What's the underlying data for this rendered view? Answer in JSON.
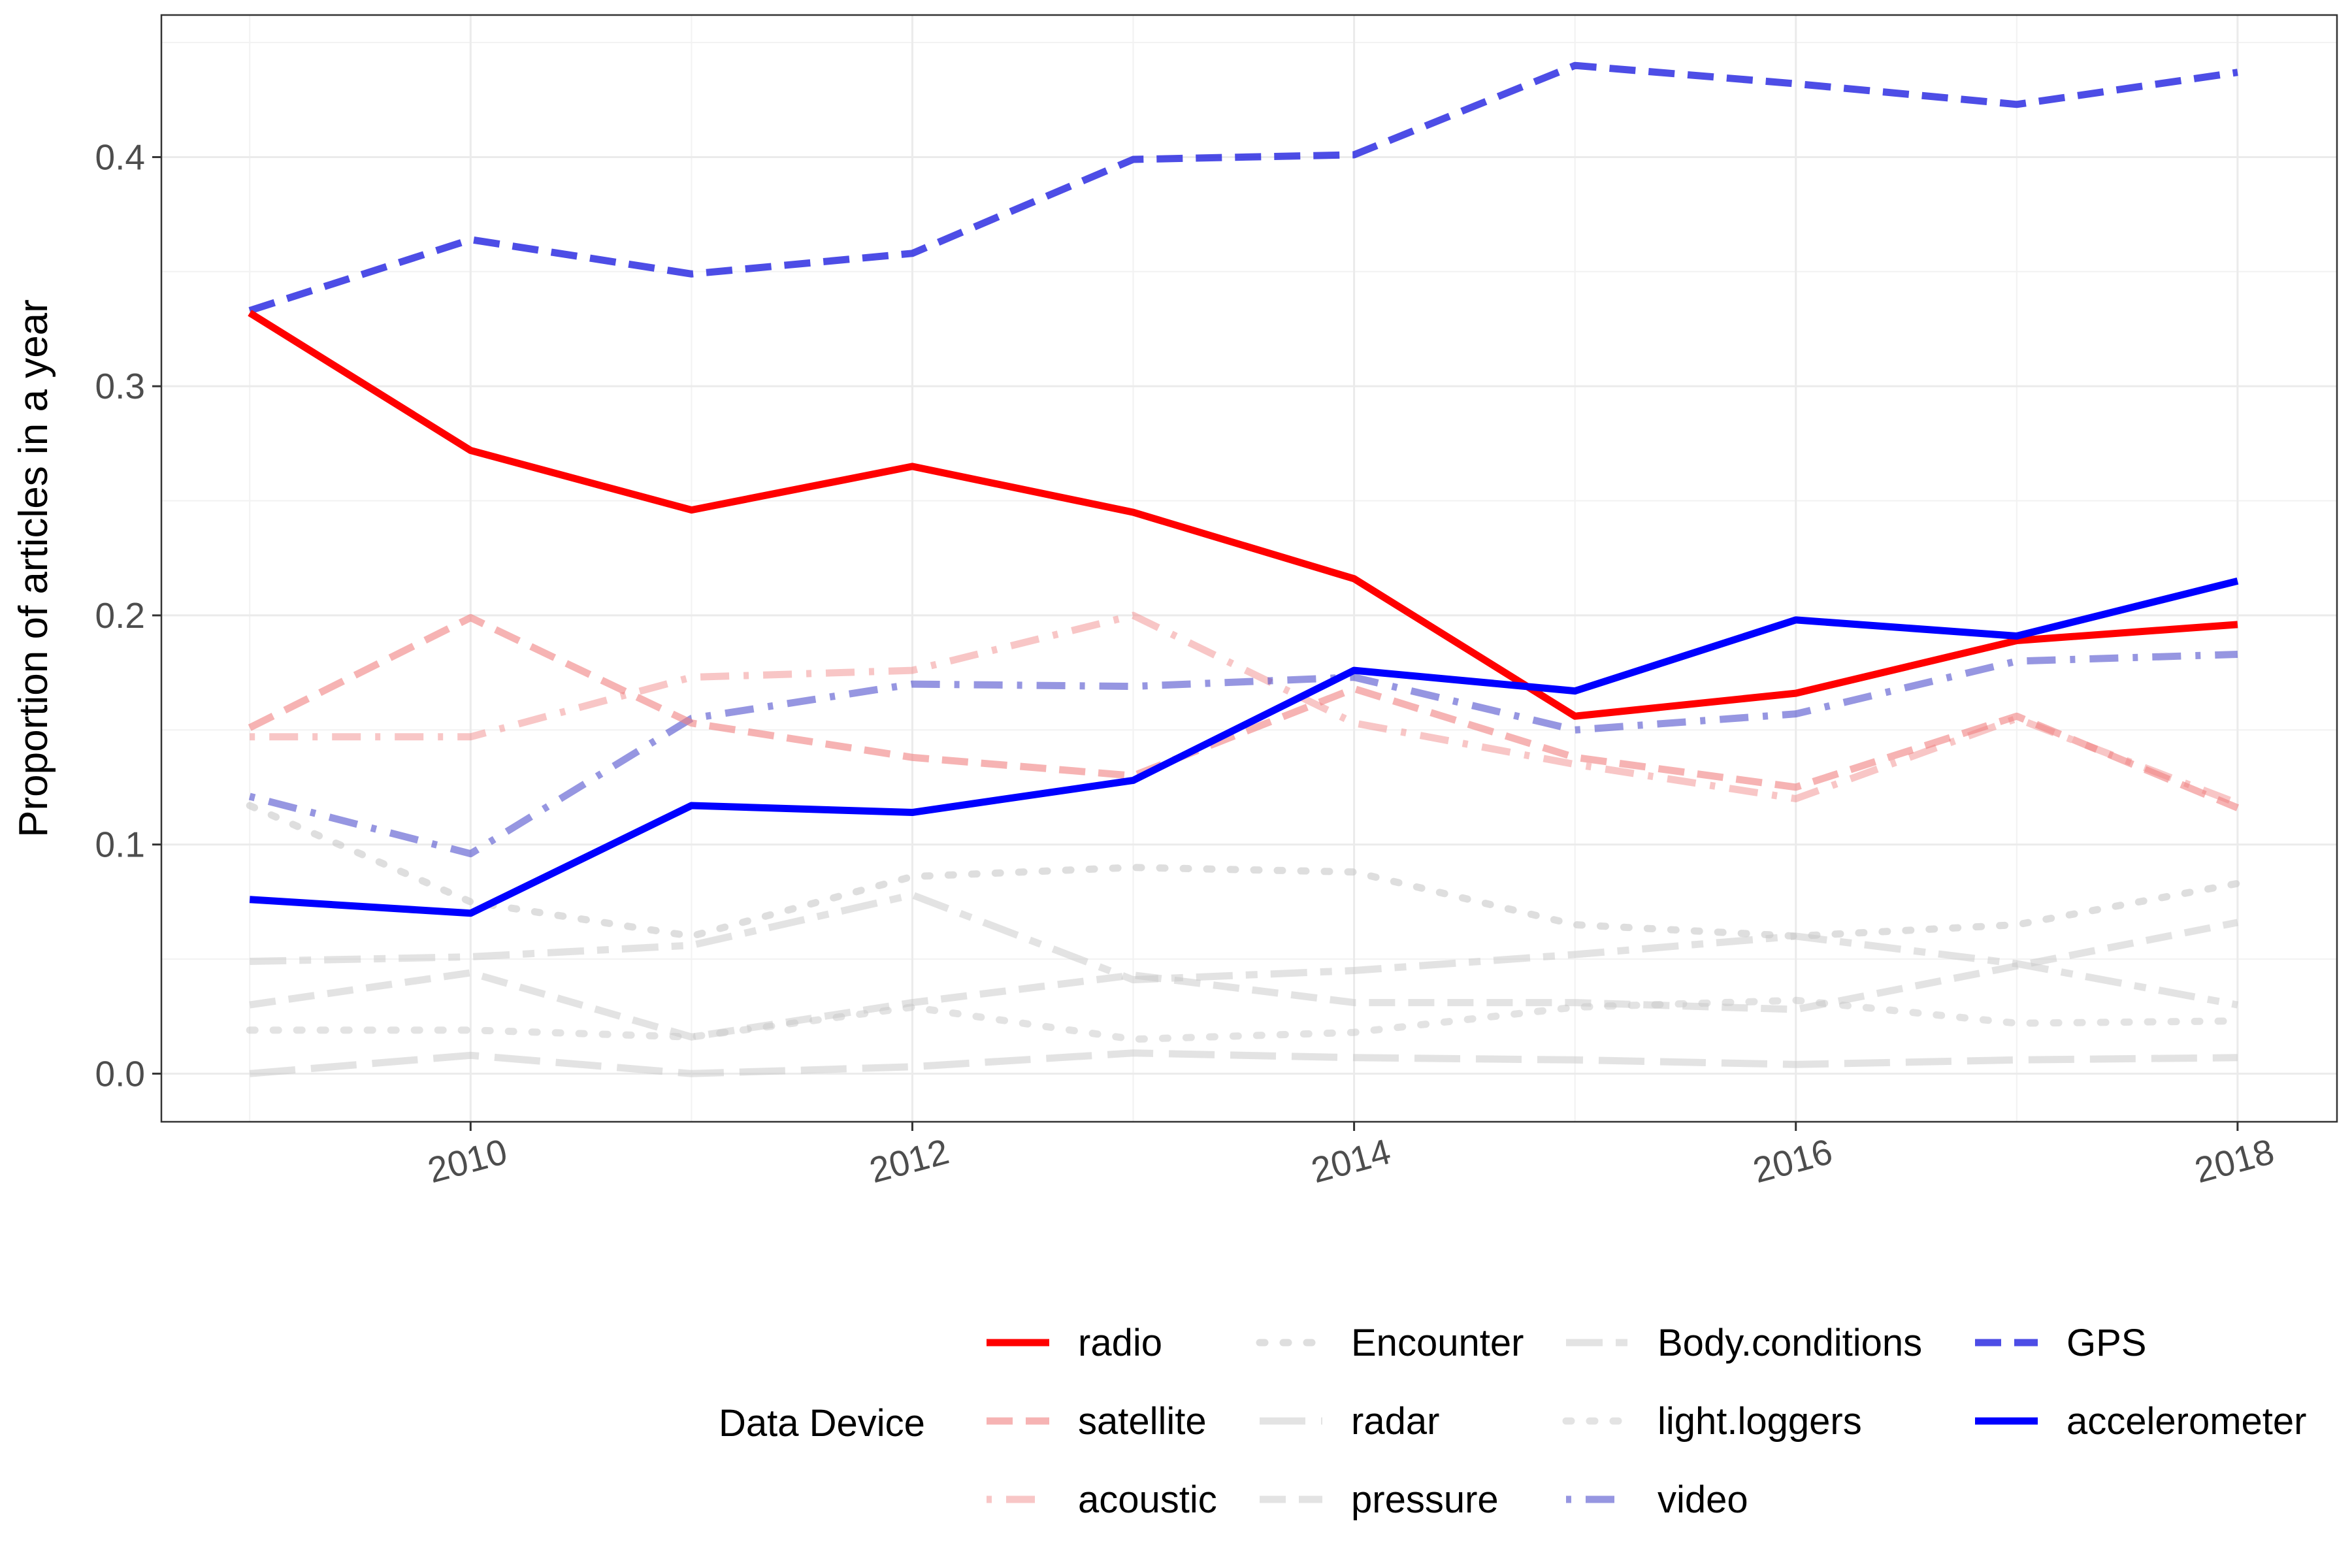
{
  "chart_data": {
    "type": "line",
    "x": [
      2009,
      2010,
      2011,
      2012,
      2013,
      2014,
      2015,
      2016,
      2017,
      2018
    ],
    "xlim": [
      2008.6,
      2018.45
    ],
    "ylim": [
      -0.021,
      0.462
    ],
    "x_ticks": [
      2010,
      2012,
      2014,
      2016,
      2018
    ],
    "x_tick_labels": [
      "2010",
      "2012",
      "2014",
      "2016",
      "2018"
    ],
    "y_ticks": [
      0.0,
      0.1,
      0.2,
      0.3,
      0.4
    ],
    "y_tick_labels": [
      "0.0",
      "0.1",
      "0.2",
      "0.3",
      "0.4"
    ],
    "ylabel": "Proportion of articles in a year",
    "xlabel": "",
    "grid": true,
    "legend_title": "Data Device",
    "legend_position": "bottom",
    "series": [
      {
        "name": "radio",
        "color": "#ff0000",
        "opacity": 1.0,
        "dash": "solid",
        "values": [
          0.332,
          0.272,
          0.246,
          0.265,
          0.245,
          0.216,
          0.156,
          0.166,
          0.189,
          0.196
        ]
      },
      {
        "name": "satellite",
        "color": "#f08080",
        "opacity": 0.6,
        "dash": "dashed",
        "values": [
          0.151,
          0.199,
          0.153,
          0.138,
          0.13,
          0.168,
          0.138,
          0.125,
          0.156,
          0.116
        ]
      },
      {
        "name": "acoustic",
        "color": "#f08080",
        "opacity": 0.45,
        "dash": "dotdash",
        "values": [
          0.147,
          0.147,
          0.173,
          0.176,
          0.2,
          0.153,
          0.135,
          0.12,
          0.155,
          0.118
        ]
      },
      {
        "name": "Encounter",
        "color": "#c8c8c8",
        "opacity": 0.6,
        "dash": "dotted",
        "values": [
          0.117,
          0.075,
          0.06,
          0.086,
          0.09,
          0.088,
          0.065,
          0.06,
          0.065,
          0.083
        ]
      },
      {
        "name": "radar",
        "color": "#c8c8c8",
        "opacity": 0.5,
        "dash": "longdash",
        "values": [
          0.0,
          0.008,
          0.0,
          0.003,
          0.009,
          0.007,
          0.006,
          0.004,
          0.006,
          0.007
        ]
      },
      {
        "name": "pressure",
        "color": "#c8c8c8",
        "opacity": 0.5,
        "dash": "dashed",
        "values": [
          0.03,
          0.044,
          0.016,
          0.031,
          0.043,
          0.031,
          0.031,
          0.028,
          0.047,
          0.066
        ]
      },
      {
        "name": "Body.conditions",
        "color": "#c8c8c8",
        "opacity": 0.5,
        "dash": "twodash",
        "values": [
          0.049,
          0.051,
          0.056,
          0.078,
          0.041,
          0.045,
          0.052,
          0.06,
          0.048,
          0.03
        ]
      },
      {
        "name": "light.loggers",
        "color": "#c8c8c8",
        "opacity": 0.5,
        "dash": "dotted",
        "values": [
          0.019,
          0.019,
          0.016,
          0.029,
          0.015,
          0.018,
          0.029,
          0.032,
          0.022,
          0.023
        ]
      },
      {
        "name": "video",
        "color": "#4040c8",
        "opacity": 0.55,
        "dash": "dotdash",
        "values": [
          0.121,
          0.096,
          0.155,
          0.17,
          0.169,
          0.173,
          0.15,
          0.157,
          0.18,
          0.183
        ]
      },
      {
        "name": "GPS",
        "color": "#2020e0",
        "opacity": 0.8,
        "dash": "dashed",
        "values": [
          0.333,
          0.364,
          0.349,
          0.358,
          0.399,
          0.401,
          0.44,
          0.432,
          0.423,
          0.437
        ]
      },
      {
        "name": "accelerometer",
        "color": "#0000ff",
        "opacity": 1.0,
        "dash": "solid",
        "values": [
          0.076,
          0.07,
          0.117,
          0.114,
          0.128,
          0.176,
          0.167,
          0.198,
          0.191,
          0.215
        ]
      }
    ]
  }
}
